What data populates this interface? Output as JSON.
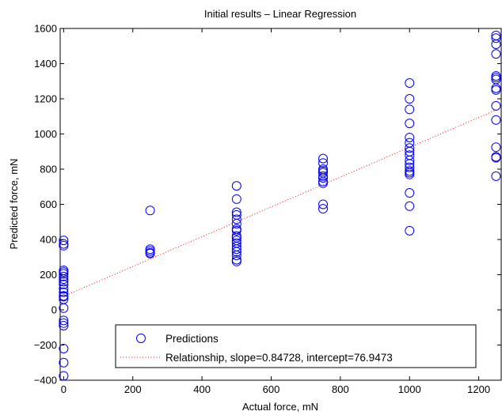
{
  "chart_data": {
    "type": "scatter",
    "title": "Initial results – Linear Regression",
    "xlabel": "Actual force, mN",
    "ylabel": "Predicted force, mN",
    "xlim": [
      -10,
      1265
    ],
    "ylim": [
      -400,
      1600
    ],
    "xticks": [
      0,
      200,
      400,
      600,
      800,
      1000,
      1200
    ],
    "yticks": [
      -400,
      -200,
      0,
      200,
      400,
      600,
      800,
      1000,
      1200,
      1400,
      1600
    ],
    "grid": false,
    "legend_position": "bottom-center",
    "series": [
      {
        "name": "Predictions",
        "marker": "circle",
        "color": "#0000ff",
        "points": [
          [
            0,
            395
          ],
          [
            0,
            375
          ],
          [
            0,
            365
          ],
          [
            0,
            225
          ],
          [
            0,
            215
          ],
          [
            0,
            205
          ],
          [
            0,
            190
          ],
          [
            0,
            175
          ],
          [
            0,
            160
          ],
          [
            0,
            145
          ],
          [
            0,
            120
          ],
          [
            0,
            100
          ],
          [
            0,
            80
          ],
          [
            0,
            75
          ],
          [
            0,
            60
          ],
          [
            0,
            10
          ],
          [
            0,
            -60
          ],
          [
            0,
            -75
          ],
          [
            0,
            -90
          ],
          [
            0,
            -220
          ],
          [
            0,
            -300
          ],
          [
            0,
            -375
          ],
          [
            250,
            565
          ],
          [
            250,
            345
          ],
          [
            250,
            335
          ],
          [
            250,
            325
          ],
          [
            250,
            320
          ],
          [
            500,
            705
          ],
          [
            500,
            630
          ],
          [
            500,
            555
          ],
          [
            500,
            540
          ],
          [
            500,
            515
          ],
          [
            500,
            490
          ],
          [
            500,
            460
          ],
          [
            500,
            450
          ],
          [
            500,
            420
          ],
          [
            500,
            410
          ],
          [
            500,
            395
          ],
          [
            500,
            380
          ],
          [
            500,
            360
          ],
          [
            500,
            345
          ],
          [
            500,
            330
          ],
          [
            500,
            310
          ],
          [
            500,
            285
          ],
          [
            500,
            275
          ],
          [
            750,
            860
          ],
          [
            750,
            835
          ],
          [
            750,
            800
          ],
          [
            750,
            790
          ],
          [
            750,
            780
          ],
          [
            750,
            760
          ],
          [
            750,
            750
          ],
          [
            750,
            730
          ],
          [
            750,
            720
          ],
          [
            750,
            600
          ],
          [
            750,
            575
          ],
          [
            1000,
            1290
          ],
          [
            1000,
            1200
          ],
          [
            1000,
            1140
          ],
          [
            1000,
            1060
          ],
          [
            1000,
            980
          ],
          [
            1000,
            950
          ],
          [
            1000,
            920
          ],
          [
            1000,
            900
          ],
          [
            1000,
            880
          ],
          [
            1000,
            850
          ],
          [
            1000,
            830
          ],
          [
            1000,
            810
          ],
          [
            1000,
            790
          ],
          [
            1000,
            780
          ],
          [
            1000,
            770
          ],
          [
            1000,
            665
          ],
          [
            1000,
            590
          ],
          [
            1000,
            450
          ],
          [
            1250,
            1560
          ],
          [
            1250,
            1545
          ],
          [
            1250,
            1510
          ],
          [
            1250,
            1455
          ],
          [
            1250,
            1330
          ],
          [
            1250,
            1320
          ],
          [
            1250,
            1310
          ],
          [
            1250,
            1260
          ],
          [
            1250,
            1250
          ],
          [
            1250,
            1160
          ],
          [
            1250,
            1080
          ],
          [
            1250,
            925
          ],
          [
            1250,
            870
          ],
          [
            1250,
            865
          ],
          [
            1250,
            760
          ]
        ]
      },
      {
        "name": "Relationship, slope=0.84728, intercept=76.9473",
        "style": "dotted-line",
        "color": "#ff0000",
        "slope": 0.84728,
        "intercept": 76.9473,
        "x_range": [
          0,
          1250
        ]
      }
    ]
  }
}
